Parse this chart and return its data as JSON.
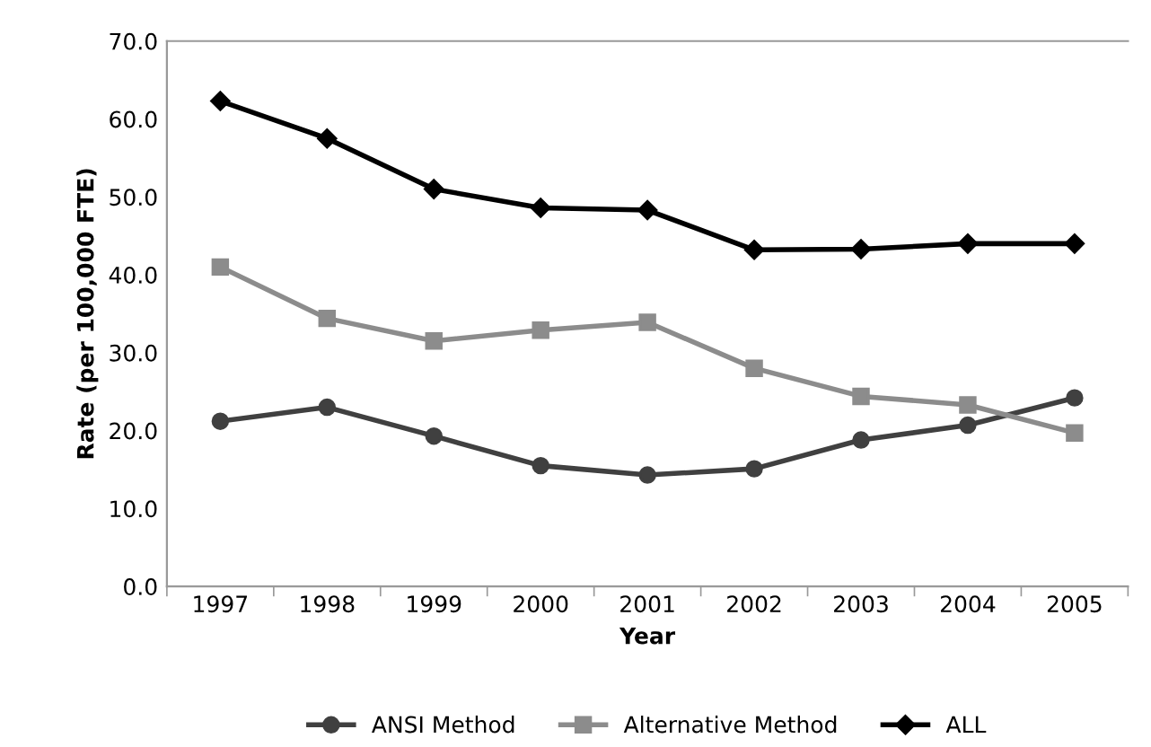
{
  "chart_data": {
    "type": "line",
    "xlabel": "Year",
    "ylabel": "Rate (per 100,000 FTE)",
    "categories": [
      "1997",
      "1998",
      "1999",
      "2000",
      "2001",
      "2002",
      "2003",
      "2004",
      "2005"
    ],
    "series": [
      {
        "name": "ANSI Method",
        "color": "#404040",
        "marker": "circle",
        "values": [
          21.2,
          23.0,
          19.3,
          15.5,
          14.3,
          15.1,
          18.8,
          20.7,
          24.2
        ]
      },
      {
        "name": "Alternative Method",
        "color": "#8c8c8c",
        "marker": "square",
        "values": [
          41.0,
          34.4,
          31.5,
          32.9,
          33.9,
          28.0,
          24.4,
          23.3,
          19.7
        ]
      },
      {
        "name": "ALL",
        "color": "#000000",
        "marker": "diamond",
        "values": [
          62.3,
          57.5,
          51.0,
          48.6,
          48.3,
          43.2,
          43.3,
          44.0,
          44.0
        ]
      }
    ],
    "ylim": [
      0,
      70
    ],
    "yticks": [
      {
        "value": 0,
        "label": "0.0"
      },
      {
        "value": 10,
        "label": "10.0"
      },
      {
        "value": 20,
        "label": "20.0"
      },
      {
        "value": 30,
        "label": "30.0"
      },
      {
        "value": 40,
        "label": "40.0"
      },
      {
        "value": 50,
        "label": "50.0"
      },
      {
        "value": 60,
        "label": "60.0"
      },
      {
        "value": 70,
        "label": "70.0"
      }
    ],
    "grid": false,
    "legend": "bottom",
    "line_style": "solid"
  }
}
